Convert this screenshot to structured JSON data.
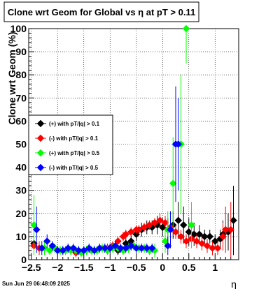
{
  "title": "Clone wrt Geom for Global vs   η  at pT > 0.11",
  "footer": "Sun Jun 29 06:48:09 2025",
  "chart_data": {
    "type": "scatter",
    "xlabel": "η",
    "ylabel": "Clone wrt Geom (%)",
    "xlim": [
      -2.55,
      1.45
    ],
    "ylim": [
      0,
      100
    ],
    "xticks": [
      -2.5,
      -2,
      -1.5,
      -1,
      -0.5,
      0,
      0.5,
      1
    ],
    "xtick_labels": [
      "−2.5",
      "−2",
      "−1.5",
      "−1",
      "−0.5",
      "0",
      "0.5",
      "1"
    ],
    "yticks": [
      0,
      10,
      20,
      30,
      40,
      50,
      60,
      70,
      80,
      90,
      100
    ],
    "grid": true,
    "legend_position": "middle-left",
    "series": [
      {
        "name": "(+) with pT/|q| > 0.1",
        "color": "#000000",
        "points": [
          [
            -2.45,
            7,
            4
          ],
          [
            -1.65,
            3,
            2
          ],
          [
            -1.35,
            4,
            2
          ],
          [
            -1.0,
            5,
            2
          ],
          [
            -0.85,
            4,
            2
          ],
          [
            -0.7,
            7,
            3
          ],
          [
            -0.6,
            8,
            3
          ],
          [
            -0.5,
            11,
            3
          ],
          [
            -0.4,
            13,
            3
          ],
          [
            -0.3,
            14,
            3
          ],
          [
            -0.2,
            14,
            3
          ],
          [
            -0.1,
            15,
            4
          ],
          [
            0.0,
            14,
            4
          ],
          [
            0.1,
            13,
            5
          ],
          [
            0.2,
            15,
            6
          ],
          [
            0.3,
            17,
            8
          ],
          [
            0.4,
            15,
            8
          ],
          [
            0.5,
            12,
            6
          ],
          [
            0.6,
            11,
            5
          ],
          [
            0.7,
            11,
            4
          ],
          [
            0.8,
            10,
            3
          ],
          [
            0.9,
            10,
            3
          ],
          [
            1.0,
            8,
            3
          ],
          [
            1.1,
            9,
            4
          ],
          [
            1.15,
            11,
            6
          ],
          [
            1.25,
            12,
            8
          ],
          [
            1.35,
            17,
            15
          ]
        ]
      },
      {
        "name": "(-) with pT/|q| > 0.1",
        "color": "#ff0000",
        "points": [
          [
            -2.45,
            6,
            3
          ],
          [
            -2.35,
            5,
            3
          ],
          [
            -1.65,
            3,
            2
          ],
          [
            -1.35,
            4,
            2
          ],
          [
            -1.05,
            5,
            2
          ],
          [
            -0.95,
            6,
            2
          ],
          [
            -0.85,
            8,
            2
          ],
          [
            -0.75,
            10,
            2
          ],
          [
            -0.7,
            11,
            2
          ],
          [
            -0.6,
            12,
            2
          ],
          [
            -0.5,
            13,
            2
          ],
          [
            -0.45,
            13,
            2
          ],
          [
            -0.35,
            14,
            2
          ],
          [
            -0.25,
            15,
            2
          ],
          [
            -0.15,
            16,
            2
          ],
          [
            -0.05,
            17,
            3
          ],
          [
            0.05,
            16,
            3
          ],
          [
            0.15,
            14,
            3
          ],
          [
            0.25,
            12,
            3
          ],
          [
            0.35,
            10,
            3
          ],
          [
            0.45,
            8,
            3
          ],
          [
            0.55,
            9,
            3
          ],
          [
            0.65,
            8,
            3
          ],
          [
            0.75,
            7,
            3
          ],
          [
            0.85,
            6,
            3
          ],
          [
            0.95,
            5,
            3
          ],
          [
            1.05,
            5,
            3
          ],
          [
            1.15,
            10,
            6
          ],
          [
            1.2,
            13,
            10
          ],
          [
            1.3,
            13,
            12
          ]
        ]
      },
      {
        "name": "(+) with pT/|q| > 0.5",
        "color": "#00ff00",
        "points": [
          [
            -2.45,
            15,
            13
          ],
          [
            -2.25,
            5,
            3
          ],
          [
            -2.15,
            4,
            2
          ],
          [
            -2.05,
            5,
            2
          ],
          [
            -1.95,
            4,
            2
          ],
          [
            -1.85,
            4,
            2
          ],
          [
            -1.75,
            4,
            2
          ],
          [
            -1.65,
            4,
            2
          ],
          [
            -1.55,
            3,
            2
          ],
          [
            -1.45,
            4,
            2
          ],
          [
            -1.35,
            4,
            2
          ],
          [
            -1.25,
            4,
            2
          ],
          [
            -1.15,
            5,
            2
          ],
          [
            -1.05,
            4,
            2
          ],
          [
            -0.95,
            5,
            2
          ],
          [
            -0.85,
            5,
            2
          ],
          [
            -0.75,
            4,
            2
          ],
          [
            -0.65,
            5,
            2
          ],
          [
            -0.55,
            6,
            2
          ],
          [
            -0.45,
            5,
            2
          ],
          [
            -0.35,
            5,
            2
          ],
          [
            -0.25,
            4,
            2
          ],
          [
            -0.15,
            4,
            3
          ],
          [
            0.05,
            8,
            5
          ],
          [
            0.1,
            13,
            8
          ],
          [
            0.2,
            33,
            20
          ],
          [
            0.35,
            50,
            30
          ],
          [
            0.45,
            100,
            15
          ],
          [
            0.55,
            15,
            10
          ]
        ]
      },
      {
        "name": "(-) with pT/|q| > 0.5",
        "color": "#0000ff",
        "points": [
          [
            -2.4,
            13,
            10
          ],
          [
            -2.3,
            5,
            3
          ],
          [
            -2.2,
            8,
            3
          ],
          [
            -2.1,
            6,
            2
          ],
          [
            -2.0,
            4,
            2
          ],
          [
            -1.9,
            4,
            2
          ],
          [
            -1.8,
            5,
            2
          ],
          [
            -1.7,
            5,
            2
          ],
          [
            -1.6,
            4,
            2
          ],
          [
            -1.5,
            4,
            2
          ],
          [
            -1.4,
            5,
            2
          ],
          [
            -1.3,
            4,
            2
          ],
          [
            -1.2,
            5,
            2
          ],
          [
            -1.1,
            5,
            2
          ],
          [
            -1.0,
            5,
            2
          ],
          [
            -0.9,
            6,
            2
          ],
          [
            -0.8,
            5,
            2
          ],
          [
            -0.7,
            5,
            2
          ],
          [
            -0.6,
            6,
            2
          ],
          [
            -0.5,
            5,
            2
          ],
          [
            -0.4,
            5,
            2
          ],
          [
            -0.3,
            5,
            2
          ],
          [
            -0.2,
            5,
            2
          ],
          [
            0.1,
            6,
            4
          ],
          [
            0.15,
            13,
            8
          ],
          [
            0.25,
            50,
            25
          ],
          [
            0.3,
            50,
            20
          ]
        ]
      }
    ]
  }
}
